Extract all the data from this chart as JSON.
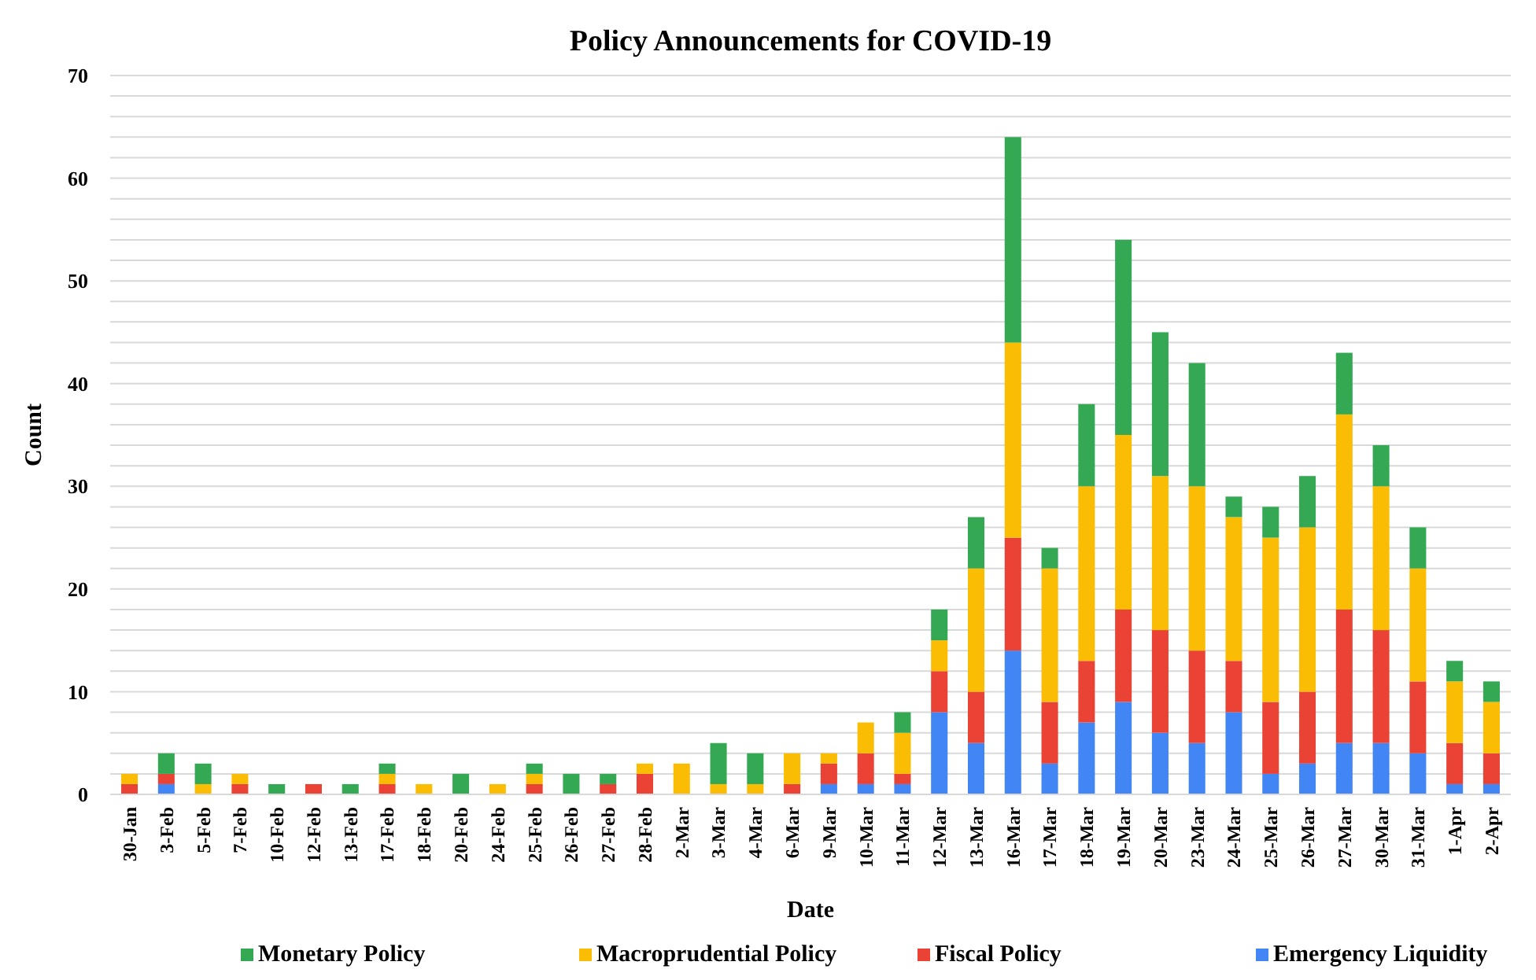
{
  "chart_data": {
    "type": "bar",
    "stacked": true,
    "title": "Policy Announcements for COVID-19",
    "xlabel": "Date",
    "ylabel": "Count",
    "categories": [
      "30-Jan",
      "3-Feb",
      "5-Feb",
      "7-Feb",
      "10-Feb",
      "12-Feb",
      "13-Feb",
      "17-Feb",
      "18-Feb",
      "20-Feb",
      "24-Feb",
      "25-Feb",
      "26-Feb",
      "27-Feb",
      "28-Feb",
      "2-Mar",
      "3-Mar",
      "4-Mar",
      "6-Mar",
      "9-Mar",
      "10-Mar",
      "11-Mar",
      "12-Mar",
      "13-Mar",
      "16-Mar",
      "17-Mar",
      "18-Mar",
      "19-Mar",
      "20-Mar",
      "23-Mar",
      "24-Mar",
      "25-Mar",
      "26-Mar",
      "27-Mar",
      "30-Mar",
      "31-Mar",
      "1-Apr",
      "2-Apr"
    ],
    "series": [
      {
        "name": "Emergency Liquidity",
        "color": "#4285f4",
        "values": [
          0,
          1,
          0,
          0,
          0,
          0,
          0,
          0,
          0,
          0,
          0,
          0,
          0,
          0,
          0,
          0,
          0,
          0,
          0,
          1,
          1,
          1,
          8,
          5,
          14,
          3,
          7,
          9,
          6,
          5,
          8,
          2,
          3,
          5,
          5,
          4,
          1,
          1
        ]
      },
      {
        "name": "Fiscal Policy",
        "color": "#ea4335",
        "values": [
          1,
          1,
          0,
          1,
          0,
          1,
          0,
          1,
          0,
          0,
          0,
          1,
          0,
          1,
          2,
          0,
          0,
          0,
          1,
          2,
          3,
          1,
          4,
          5,
          11,
          6,
          6,
          9,
          10,
          9,
          5,
          7,
          7,
          13,
          11,
          7,
          4,
          3
        ]
      },
      {
        "name": "Macroprudential Policy",
        "color": "#fbbc04",
        "values": [
          1,
          0,
          1,
          1,
          0,
          0,
          0,
          1,
          1,
          0,
          1,
          1,
          0,
          0,
          1,
          3,
          1,
          1,
          3,
          1,
          3,
          4,
          3,
          12,
          19,
          13,
          17,
          17,
          15,
          16,
          14,
          16,
          16,
          19,
          14,
          11,
          6,
          5
        ]
      },
      {
        "name": "Monetary Policy",
        "color": "#34a853",
        "values": [
          0,
          2,
          2,
          0,
          1,
          0,
          1,
          1,
          0,
          2,
          0,
          1,
          2,
          1,
          0,
          0,
          4,
          3,
          0,
          0,
          0,
          2,
          3,
          5,
          20,
          2,
          8,
          19,
          14,
          12,
          2,
          3,
          5,
          6,
          4,
          4,
          2,
          2
        ]
      }
    ],
    "ylim": [
      0,
      70
    ],
    "yticks": [
      0,
      {
        "value": 2,
        "label": null
      },
      {
        "value": 4,
        "label": null
      },
      {
        "value": 6,
        "label": null
      },
      {
        "value": 8,
        "label": null
      },
      10,
      {
        "value": 12,
        "label": null
      },
      {
        "value": 14,
        "label": null
      },
      {
        "value": 16,
        "label": null
      },
      {
        "value": 18,
        "label": null
      },
      20,
      {
        "value": 22,
        "label": null
      },
      {
        "value": 24,
        "label": null
      },
      {
        "value": 26,
        "label": null
      },
      {
        "value": 28,
        "label": null
      },
      30,
      {
        "value": 32,
        "label": null
      },
      {
        "value": 34,
        "label": null
      },
      {
        "value": 36,
        "label": null
      },
      {
        "value": 38,
        "label": null
      },
      40,
      {
        "value": 42,
        "label": null
      },
      {
        "value": 44,
        "label": null
      },
      {
        "value": 46,
        "label": null
      },
      {
        "value": 48,
        "label": null
      },
      50,
      {
        "value": 52,
        "label": null
      },
      {
        "value": 54,
        "label": null
      },
      {
        "value": 56,
        "label": null
      },
      {
        "value": 58,
        "label": null
      },
      60,
      {
        "value": 62,
        "label": null
      },
      {
        "value": 64,
        "label": null
      },
      {
        "value": 66,
        "label": null
      },
      {
        "value": 68,
        "label": null
      },
      70
    ],
    "grid": true,
    "legend": "bottom"
  }
}
